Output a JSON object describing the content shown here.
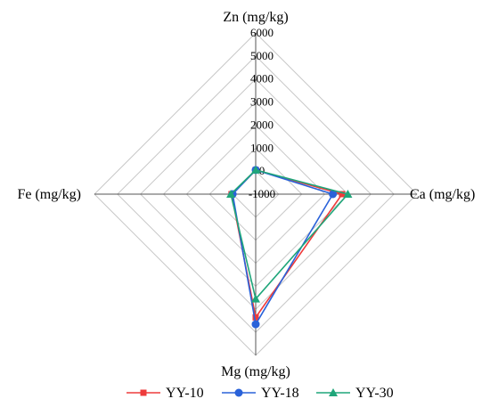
{
  "chart_data": {
    "type": "radar",
    "axes": [
      "Zn (mg/kg)",
      "Ca (mg/kg)",
      "Mg (mg/kg)",
      "Fe (mg/kg)"
    ],
    "axis_range": [
      -1000,
      6000
    ],
    "tick_labels": [
      "-1000",
      "0",
      "1000",
      "2000",
      "3000",
      "4000",
      "5000",
      "6000"
    ],
    "tick_values": [
      -1000,
      0,
      1000,
      2000,
      3000,
      4000,
      5000,
      6000
    ],
    "grid": true,
    "legend_position": "bottom",
    "series": [
      {
        "name": "YY-10",
        "color": "#ee3b3b",
        "marker": "square",
        "values": [
          50,
          2750,
          4350,
          50
        ]
      },
      {
        "name": "YY-18",
        "color": "#2a62d9",
        "marker": "circle",
        "values": [
          50,
          2350,
          4650,
          0
        ]
      },
      {
        "name": "YY-30",
        "color": "#1fa67a",
        "marker": "triangle",
        "values": [
          50,
          3000,
          3550,
          80
        ]
      }
    ]
  }
}
